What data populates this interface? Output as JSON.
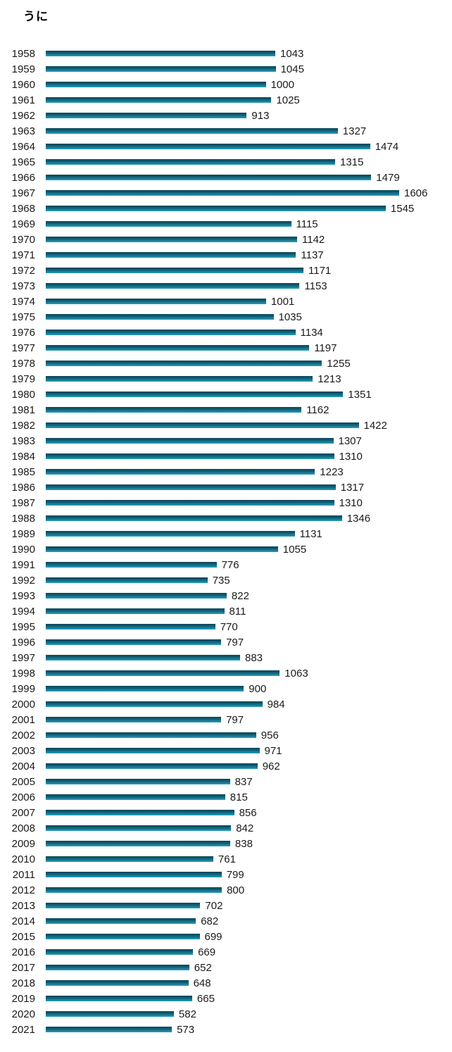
{
  "page": {
    "background": "#ffffff"
  },
  "chart_data": {
    "type": "bar",
    "orientation": "horizontal",
    "title": "うに",
    "xlabel": "",
    "ylabel": "",
    "grid": false,
    "legend": false,
    "value_labels_shown": true,
    "xlim": [
      0,
      1606
    ],
    "bar_color_top": "#0c4554",
    "bar_color_mid": "#11607a",
    "bar_color_bottom": "#23a0bc",
    "label_color": "#1a1a1a",
    "categories": [
      "1958",
      "1959",
      "1960",
      "1961",
      "1962",
      "1963",
      "1964",
      "1965",
      "1966",
      "1967",
      "1968",
      "1969",
      "1970",
      "1971",
      "1972",
      "1973",
      "1974",
      "1975",
      "1976",
      "1977",
      "1978",
      "1979",
      "1980",
      "1981",
      "1982",
      "1983",
      "1984",
      "1985",
      "1986",
      "1987",
      "1988",
      "1989",
      "1990",
      "1991",
      "1992",
      "1993",
      "1994",
      "1995",
      "1996",
      "1997",
      "1998",
      "1999",
      "2000",
      "2001",
      "2002",
      "2003",
      "2004",
      "2005",
      "2006",
      "2007",
      "2008",
      "2009",
      "2010",
      "2011",
      "2012",
      "2013",
      "2014",
      "2015",
      "2016",
      "2017",
      "2018",
      "2019",
      "2020",
      "2021"
    ],
    "values": [
      1043,
      1045,
      1000,
      1025,
      913,
      1327,
      1474,
      1315,
      1479,
      1606,
      1545,
      1115,
      1142,
      1137,
      1171,
      1153,
      1001,
      1035,
      1134,
      1197,
      1255,
      1213,
      1351,
      1162,
      1422,
      1307,
      1310,
      1223,
      1317,
      1310,
      1346,
      1131,
      1055,
      776,
      735,
      822,
      811,
      770,
      797,
      883,
      1063,
      900,
      984,
      797,
      956,
      971,
      962,
      837,
      815,
      856,
      842,
      838,
      761,
      799,
      800,
      702,
      682,
      699,
      669,
      652,
      648,
      665,
      582,
      573
    ]
  }
}
